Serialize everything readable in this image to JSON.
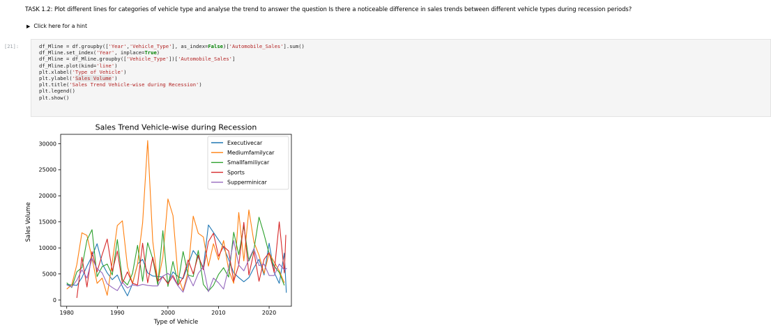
{
  "task": {
    "text": "TASK 1.2: Plot different lines for categories of vehicle type and analyse the trend to answer the question Is there a noticeable difference in sales trends between different vehicle types during recession periods?"
  },
  "hint": {
    "label": "Click here for a hint",
    "icon": "disclosure-triangle-icon"
  },
  "cell": {
    "prompt": "[21]:"
  },
  "code_lines": [
    "df_Mline = df.groupby(['Year','Vehicle_Type'], as_index=False)['Automobile_Sales'].sum()",
    "df_Mline.set_index('Year', inplace=True)",
    "df_Mline = df_Mline.groupby(['Vehicle_Type'])['Automobile_Sales']",
    "df_Mline.plot(kind='line')",
    "plt.xlabel('Type of Vehicle')",
    "plt.ylabel('Sales Volume')",
    "plt.title('Sales Trend Vehicle-wise during Recession')",
    "plt.legend()",
    "plt.show()"
  ],
  "chart_data": {
    "type": "line",
    "title": "Sales Trend Vehicle-wise during Recession",
    "xlabel": "Type of Vehicle",
    "ylabel": "Sales Volume",
    "xlim": [
      1978.8,
      2024.4
    ],
    "ylim": [
      -1200,
      31800
    ],
    "xticks": [
      1980,
      1990,
      2000,
      2010,
      2020
    ],
    "yticks": [
      0,
      5000,
      10000,
      15000,
      20000,
      25000,
      30000
    ],
    "legend_position": "upper-right",
    "grid": false,
    "series": [
      {
        "name": "Executivecar",
        "color": "#1f77b4",
        "points": [
          [
            1980,
            3000
          ],
          [
            1982,
            2800
          ],
          [
            1983,
            4300
          ],
          [
            1984,
            6500
          ],
          [
            1985,
            8400
          ],
          [
            1986,
            10800
          ],
          [
            1987,
            7000
          ],
          [
            1988,
            5200
          ],
          [
            1989,
            3900
          ],
          [
            1990,
            4800
          ],
          [
            1991,
            2600
          ],
          [
            1992,
            800
          ],
          [
            1993,
            3100
          ],
          [
            1994,
            6900
          ],
          [
            1995,
            7800
          ],
          [
            1996,
            5200
          ],
          [
            1997,
            4600
          ],
          [
            1999,
            4400
          ],
          [
            2000,
            3300
          ],
          [
            2001,
            5400
          ],
          [
            2002,
            4500
          ],
          [
            2003,
            4100
          ],
          [
            2004,
            6800
          ],
          [
            2005,
            9500
          ],
          [
            2006,
            8200
          ],
          [
            2007,
            6200
          ],
          [
            2008,
            14400
          ],
          [
            2011,
            10100
          ],
          [
            2012,
            7800
          ],
          [
            2013,
            5200
          ],
          [
            2014,
            4300
          ],
          [
            2015,
            3500
          ],
          [
            2016,
            4300
          ],
          [
            2017,
            6200
          ],
          [
            2018,
            7800
          ],
          [
            2019,
            4800
          ],
          [
            2020,
            10900
          ],
          [
            2021,
            5300
          ],
          [
            2022,
            3200
          ],
          [
            2023,
            9000
          ],
          [
            2023.4,
            1400
          ]
        ]
      },
      {
        "name": "Mediumfamilycar",
        "color": "#ff7f0e",
        "points": [
          [
            1980,
            2100
          ],
          [
            1981,
            2900
          ],
          [
            1982,
            6800
          ],
          [
            1983,
            12900
          ],
          [
            1984,
            12400
          ],
          [
            1985,
            8000
          ],
          [
            1986,
            3200
          ],
          [
            1987,
            4200
          ],
          [
            1988,
            900
          ],
          [
            1989,
            7300
          ],
          [
            1990,
            14300
          ],
          [
            1991,
            15200
          ],
          [
            1992,
            6400
          ],
          [
            1993,
            3200
          ],
          [
            1994,
            6900
          ],
          [
            1995,
            14800
          ],
          [
            1996,
            30600
          ],
          [
            1997,
            11300
          ],
          [
            1998,
            3400
          ],
          [
            1999,
            8200
          ],
          [
            2000,
            19400
          ],
          [
            2001,
            16200
          ],
          [
            2002,
            4500
          ],
          [
            2003,
            1800
          ],
          [
            2004,
            5500
          ],
          [
            2005,
            16100
          ],
          [
            2006,
            12800
          ],
          [
            2007,
            12100
          ],
          [
            2008,
            6500
          ],
          [
            2009,
            10800
          ],
          [
            2010,
            7700
          ],
          [
            2011,
            11400
          ],
          [
            2012,
            5800
          ],
          [
            2013,
            3200
          ],
          [
            2014,
            16800
          ],
          [
            2015,
            7500
          ],
          [
            2016,
            17300
          ],
          [
            2017,
            11100
          ],
          [
            2018,
            8600
          ],
          [
            2019,
            5100
          ],
          [
            2020,
            9000
          ],
          [
            2021,
            7300
          ],
          [
            2022,
            5600
          ],
          [
            2023,
            3300
          ]
        ]
      },
      {
        "name": "Smallfamiliycar",
        "color": "#2ca02c",
        "points": [
          [
            1980,
            3300
          ],
          [
            1981,
            2400
          ],
          [
            1982,
            5400
          ],
          [
            1983,
            6200
          ],
          [
            1984,
            11500
          ],
          [
            1985,
            13500
          ],
          [
            1986,
            4500
          ],
          [
            1987,
            6400
          ],
          [
            1988,
            6900
          ],
          [
            1989,
            4800
          ],
          [
            1990,
            11600
          ],
          [
            1991,
            3900
          ],
          [
            1992,
            2900
          ],
          [
            1993,
            5100
          ],
          [
            1994,
            10500
          ],
          [
            1995,
            3600
          ],
          [
            1996,
            11000
          ],
          [
            1997,
            7900
          ],
          [
            1998,
            2900
          ],
          [
            1999,
            13300
          ],
          [
            2000,
            2600
          ],
          [
            2001,
            7400
          ],
          [
            2002,
            3100
          ],
          [
            2003,
            9300
          ],
          [
            2004,
            4800
          ],
          [
            2005,
            4500
          ],
          [
            2006,
            9500
          ],
          [
            2007,
            3000
          ],
          [
            2008,
            1700
          ],
          [
            2009,
            2800
          ],
          [
            2010,
            4900
          ],
          [
            2011,
            6200
          ],
          [
            2012,
            4400
          ],
          [
            2013,
            13000
          ],
          [
            2014,
            8700
          ],
          [
            2015,
            14200
          ],
          [
            2016,
            7500
          ],
          [
            2017,
            9700
          ],
          [
            2018,
            15900
          ],
          [
            2019,
            12600
          ],
          [
            2020,
            8900
          ],
          [
            2021,
            6500
          ],
          [
            2022,
            5300
          ],
          [
            2023,
            2800
          ]
        ]
      },
      {
        "name": "Sports",
        "color": "#d62728",
        "points": [
          [
            1982,
            400
          ],
          [
            1983,
            8200
          ],
          [
            1984,
            2500
          ],
          [
            1985,
            9300
          ],
          [
            1986,
            5400
          ],
          [
            1987,
            8700
          ],
          [
            1988,
            11700
          ],
          [
            1989,
            5500
          ],
          [
            1990,
            9400
          ],
          [
            1991,
            3200
          ],
          [
            1992,
            5400
          ],
          [
            1993,
            3200
          ],
          [
            1994,
            2900
          ],
          [
            1995,
            10900
          ],
          [
            1996,
            3300
          ],
          [
            1997,
            8200
          ],
          [
            1998,
            3600
          ],
          [
            1999,
            4500
          ],
          [
            2000,
            3100
          ],
          [
            2001,
            4700
          ],
          [
            2002,
            2800
          ],
          [
            2003,
            4300
          ],
          [
            2004,
            7700
          ],
          [
            2005,
            5000
          ],
          [
            2006,
            8600
          ],
          [
            2007,
            5800
          ],
          [
            2008,
            11200
          ],
          [
            2009,
            12800
          ],
          [
            2010,
            8400
          ],
          [
            2011,
            10300
          ],
          [
            2012,
            9400
          ],
          [
            2013,
            3600
          ],
          [
            2014,
            6700
          ],
          [
            2015,
            14900
          ],
          [
            2016,
            4800
          ],
          [
            2017,
            9300
          ],
          [
            2018,
            3600
          ],
          [
            2019,
            7800
          ],
          [
            2020,
            9100
          ],
          [
            2021,
            5300
          ],
          [
            2022,
            15000
          ],
          [
            2023,
            5200
          ],
          [
            2023.3,
            12500
          ]
        ]
      },
      {
        "name": "Supperminicar",
        "color": "#9467bd",
        "points": [
          [
            1980,
            2900
          ],
          [
            1981,
            2500
          ],
          [
            1982,
            3800
          ],
          [
            1983,
            5800
          ],
          [
            1984,
            4200
          ],
          [
            1985,
            8000
          ],
          [
            1986,
            6000
          ],
          [
            1987,
            5200
          ],
          [
            1988,
            3100
          ],
          [
            1989,
            2400
          ],
          [
            1990,
            1800
          ],
          [
            1991,
            3400
          ],
          [
            1992,
            2300
          ],
          [
            1993,
            2900
          ],
          [
            1994,
            2700
          ],
          [
            1995,
            3000
          ],
          [
            1996,
            2800
          ],
          [
            1997,
            2700
          ],
          [
            1998,
            2700
          ],
          [
            1999,
            4600
          ],
          [
            2000,
            5100
          ],
          [
            2001,
            4300
          ],
          [
            2002,
            2700
          ],
          [
            2003,
            1500
          ],
          [
            2004,
            4700
          ],
          [
            2005,
            2700
          ],
          [
            2006,
            5100
          ],
          [
            2007,
            6400
          ],
          [
            2008,
            1600
          ],
          [
            2009,
            4200
          ],
          [
            2010,
            3300
          ],
          [
            2011,
            2100
          ],
          [
            2012,
            6200
          ],
          [
            2013,
            11400
          ],
          [
            2014,
            6700
          ],
          [
            2015,
            5600
          ],
          [
            2016,
            7800
          ],
          [
            2017,
            9900
          ],
          [
            2018,
            6600
          ],
          [
            2019,
            6900
          ],
          [
            2020,
            4700
          ],
          [
            2021,
            4700
          ],
          [
            2022,
            6900
          ],
          [
            2023,
            5800
          ],
          [
            2023.5,
            6100
          ]
        ]
      }
    ]
  }
}
